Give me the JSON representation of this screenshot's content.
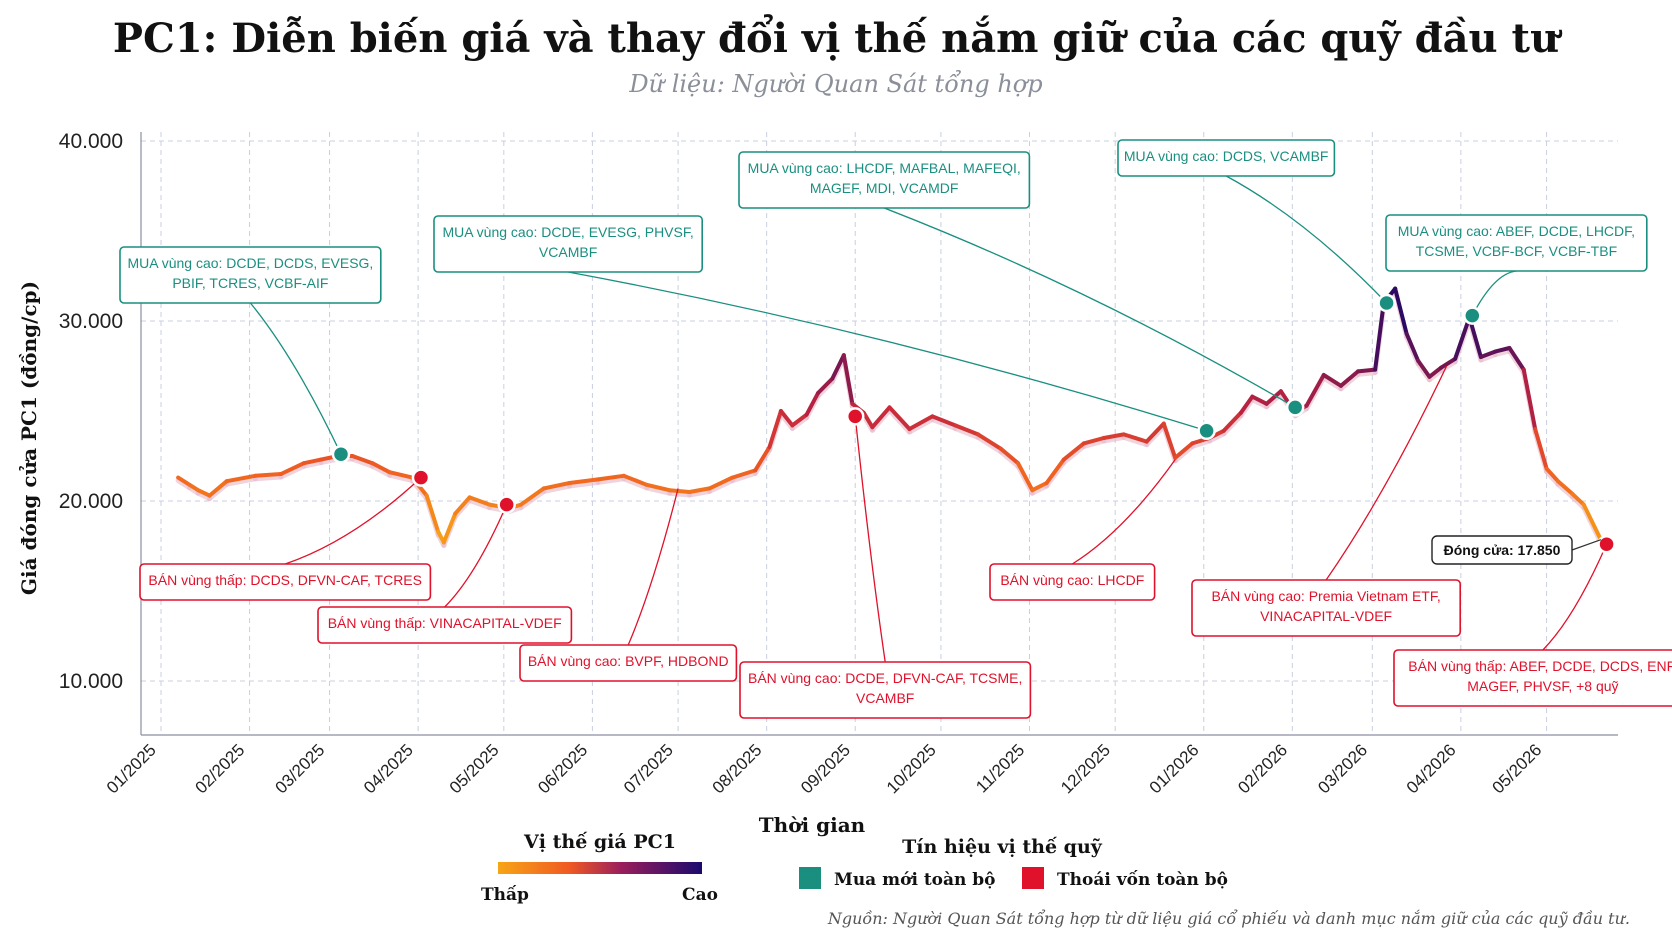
{
  "title": "PC1: Diễn biến giá và thay đổi vị thế nắm giữ của các quỹ đầu tư",
  "subtitle": "Dữ liệu: Người Quan Sát tổng hợp",
  "source": "Nguồn: Người Quan Sát tổng hợp từ dữ liệu giá cổ phiếu và danh mục nắm giữ của các quỹ đầu tư.",
  "colors": {
    "buy": "#1a8f80",
    "sell": "#e0112b",
    "grid": "#c9cfe0",
    "low": "#f7a516",
    "mid": "#c2243f",
    "high": "#2b0a63"
  },
  "legend": {
    "gradient_title": "Vị thế giá PC1",
    "gradient_low": "Thấp",
    "gradient_high": "Cao",
    "signal_title": "Tín hiệu vị thế quỹ",
    "buy_label": "Mua mới toàn bộ",
    "sell_label": "Thoái vốn toàn bộ"
  },
  "chart_data": {
    "type": "line",
    "xlabel": "Thời gian",
    "ylabel": "Giá đóng cửa PC1 (đồng/cp)",
    "ylim": [
      7000,
      40500
    ],
    "yticks": [
      {
        "value": 10000,
        "label": "10.000"
      },
      {
        "value": 20000,
        "label": "20.000"
      },
      {
        "value": 30000,
        "label": "30.000"
      },
      {
        "value": 40000,
        "label": "40.000"
      }
    ],
    "xlim": [
      "2024-12-25",
      "2026-05-26"
    ],
    "xticks": [
      {
        "date": "2025-01-01",
        "label": "01/2025"
      },
      {
        "date": "2025-02-01",
        "label": "02/2025"
      },
      {
        "date": "2025-03-01",
        "label": "03/2025"
      },
      {
        "date": "2025-04-01",
        "label": "04/2025"
      },
      {
        "date": "2025-05-01",
        "label": "05/2025"
      },
      {
        "date": "2025-06-01",
        "label": "06/2025"
      },
      {
        "date": "2025-07-01",
        "label": "07/2025"
      },
      {
        "date": "2025-08-01",
        "label": "08/2025"
      },
      {
        "date": "2025-09-01",
        "label": "09/2025"
      },
      {
        "date": "2025-10-01",
        "label": "10/2025"
      },
      {
        "date": "2025-11-01",
        "label": "11/2025"
      },
      {
        "date": "2025-12-01",
        "label": "12/2025"
      },
      {
        "date": "2026-01-01",
        "label": "01/2026"
      },
      {
        "date": "2026-02-01",
        "label": "02/2026"
      },
      {
        "date": "2026-03-01",
        "label": "03/2026"
      },
      {
        "date": "2026-04-01",
        "label": "04/2026"
      },
      {
        "date": "2026-05-01",
        "label": "05/2026"
      }
    ],
    "series": [
      {
        "values": [
          [
            "2025-01-07",
            21300
          ],
          [
            "2025-01-11",
            20900
          ],
          [
            "2025-01-14",
            20600
          ],
          [
            "2025-01-18",
            20300
          ],
          [
            "2025-01-24",
            21100
          ],
          [
            "2025-02-03",
            21400
          ],
          [
            "2025-02-12",
            21500
          ],
          [
            "2025-02-20",
            22100
          ],
          [
            "2025-02-26",
            22300
          ],
          [
            "2025-03-04",
            22500
          ],
          [
            "2025-03-09",
            22500
          ],
          [
            "2025-03-16",
            22100
          ],
          [
            "2025-03-22",
            21600
          ],
          [
            "2025-03-30",
            21300
          ],
          [
            "2025-04-04",
            20300
          ],
          [
            "2025-04-08",
            18300
          ],
          [
            "2025-04-10",
            17700
          ],
          [
            "2025-04-14",
            19300
          ],
          [
            "2025-04-19",
            20200
          ],
          [
            "2025-04-26",
            19800
          ],
          [
            "2025-05-03",
            19600
          ],
          [
            "2025-05-07",
            19800
          ],
          [
            "2025-05-15",
            20700
          ],
          [
            "2025-05-24",
            21000
          ],
          [
            "2025-06-03",
            21200
          ],
          [
            "2025-06-12",
            21400
          ],
          [
            "2025-06-20",
            20900
          ],
          [
            "2025-06-28",
            20600
          ],
          [
            "2025-07-05",
            20500
          ],
          [
            "2025-07-12",
            20700
          ],
          [
            "2025-07-20",
            21300
          ],
          [
            "2025-07-28",
            21700
          ],
          [
            "2025-08-02",
            23000
          ],
          [
            "2025-08-06",
            25000
          ],
          [
            "2025-08-10",
            24200
          ],
          [
            "2025-08-15",
            24800
          ],
          [
            "2025-08-19",
            26000
          ],
          [
            "2025-08-24",
            26800
          ],
          [
            "2025-08-28",
            28100
          ],
          [
            "2025-08-31",
            25400
          ],
          [
            "2025-09-04",
            24900
          ],
          [
            "2025-09-07",
            24100
          ],
          [
            "2025-09-13",
            25200
          ],
          [
            "2025-09-20",
            24000
          ],
          [
            "2025-09-28",
            24700
          ],
          [
            "2025-10-06",
            24200
          ],
          [
            "2025-10-14",
            23700
          ],
          [
            "2025-10-22",
            22900
          ],
          [
            "2025-10-28",
            22100
          ],
          [
            "2025-11-02",
            20600
          ],
          [
            "2025-11-07",
            21000
          ],
          [
            "2025-11-13",
            22300
          ],
          [
            "2025-11-20",
            23200
          ],
          [
            "2025-11-27",
            23500
          ],
          [
            "2025-12-04",
            23700
          ],
          [
            "2025-12-12",
            23300
          ],
          [
            "2025-12-18",
            24300
          ],
          [
            "2025-12-22",
            22400
          ],
          [
            "2025-12-28",
            23200
          ],
          [
            "2026-01-03",
            23500
          ],
          [
            "2026-01-08",
            23900
          ],
          [
            "2026-01-14",
            24900
          ],
          [
            "2026-01-18",
            25800
          ],
          [
            "2026-01-23",
            25400
          ],
          [
            "2026-01-28",
            26100
          ],
          [
            "2026-02-02",
            24900
          ],
          [
            "2026-02-06",
            25300
          ],
          [
            "2026-02-12",
            27000
          ],
          [
            "2026-02-18",
            26400
          ],
          [
            "2026-02-24",
            27200
          ],
          [
            "2026-03-02",
            27300
          ],
          [
            "2026-03-05",
            31000
          ],
          [
            "2026-03-09",
            31800
          ],
          [
            "2026-03-13",
            29300
          ],
          [
            "2026-03-17",
            27800
          ],
          [
            "2026-03-21",
            26900
          ],
          [
            "2026-03-25",
            27400
          ],
          [
            "2026-03-30",
            27900
          ],
          [
            "2026-04-04",
            30200
          ],
          [
            "2026-04-08",
            28000
          ],
          [
            "2026-04-13",
            28300
          ],
          [
            "2026-04-18",
            28500
          ],
          [
            "2026-04-23",
            27300
          ],
          [
            "2026-04-27",
            24000
          ],
          [
            "2026-05-01",
            21800
          ],
          [
            "2026-05-05",
            21100
          ],
          [
            "2026-05-10",
            20400
          ],
          [
            "2026-05-14",
            19800
          ],
          [
            "2026-05-20",
            17850
          ]
        ]
      }
    ],
    "close_label": "Đóng cửa: 17.850",
    "markers": [
      {
        "type": "buy",
        "date": "2025-03-05",
        "value": 22600
      },
      {
        "type": "sell",
        "date": "2025-04-02",
        "value": 21300
      },
      {
        "type": "sell",
        "date": "2025-05-02",
        "value": 19800
      },
      {
        "type": "sell",
        "date": "2025-09-01",
        "value": 24700
      },
      {
        "type": "buy",
        "date": "2026-01-02",
        "value": 23900
      },
      {
        "type": "buy",
        "date": "2026-02-02",
        "value": 25200
      },
      {
        "type": "buy",
        "date": "2026-03-06",
        "value": 31000
      },
      {
        "type": "buy",
        "date": "2026-04-05",
        "value": 30300
      },
      {
        "type": "sell",
        "date": "2026-05-22",
        "value": 17600
      }
    ],
    "annotations": [
      {
        "type": "buy",
        "lines": [
          "MUA vùng cao: DCDE, DCDS, EVESG,",
          "PBIF, TCRES, VCBF-AIF"
        ],
        "anchor": {
          "date": "2025-03-05",
          "value": 22600
        }
      },
      {
        "type": "buy",
        "lines": [
          "MUA vùng cao: DCDE, EVESG, PHVSF,",
          "VCAMBF"
        ],
        "anchor": {
          "date": "2026-01-02",
          "value": 23900
        }
      },
      {
        "type": "buy",
        "lines": [
          "MUA vùng cao: LHCDF, MAFBAL, MAFEQI,",
          "MAGEF, MDI, VCAMDF"
        ],
        "anchor": {
          "date": "2026-02-02",
          "value": 25200
        }
      },
      {
        "type": "buy",
        "lines": [
          "MUA vùng cao: DCDS, VCAMBF"
        ],
        "anchor": {
          "date": "2026-03-06",
          "value": 31000
        }
      },
      {
        "type": "buy",
        "lines": [
          "MUA vùng cao: ABEF, DCDE, LHCDF,",
          "TCSME, VCBF-BCF, VCBF-TBF"
        ],
        "anchor": {
          "date": "2026-04-05",
          "value": 30300
        }
      },
      {
        "type": "sell",
        "lines": [
          "BÁN vùng thấp: DCDS, DFVN-CAF, TCRES"
        ],
        "anchor": {
          "date": "2025-04-02",
          "value": 21300
        }
      },
      {
        "type": "sell",
        "lines": [
          "BÁN vùng thấp: VINACAPITAL-VDEF"
        ],
        "anchor": {
          "date": "2025-05-02",
          "value": 19800
        }
      },
      {
        "type": "sell",
        "lines": [
          "BÁN vùng cao: BVPF, HDBOND"
        ],
        "anchor": {
          "date": "2025-07-01",
          "value": 20700
        }
      },
      {
        "type": "sell",
        "lines": [
          "BÁN vùng cao: DCDE, DFVN-CAF, TCSME,",
          "VCAMBF"
        ],
        "anchor": {
          "date": "2025-09-01",
          "value": 24700
        }
      },
      {
        "type": "sell",
        "lines": [
          "BÁN vùng cao: LHCDF"
        ],
        "anchor": {
          "date": "2025-12-22",
          "value": 22300
        }
      },
      {
        "type": "sell",
        "lines": [
          "BÁN vùng cao: Premia Vietnam ETF,",
          "VINACAPITAL-VDEF"
        ],
        "anchor": {
          "date": "2026-03-27",
          "value": 27500
        }
      },
      {
        "type": "sell",
        "lines": [
          "BÁN vùng thấp: ABEF, DCDE, DCDS, ENF,",
          "MAGEF, PHVSF, +8 quỹ"
        ],
        "anchor": {
          "date": "2026-05-22",
          "value": 17600
        }
      }
    ]
  }
}
